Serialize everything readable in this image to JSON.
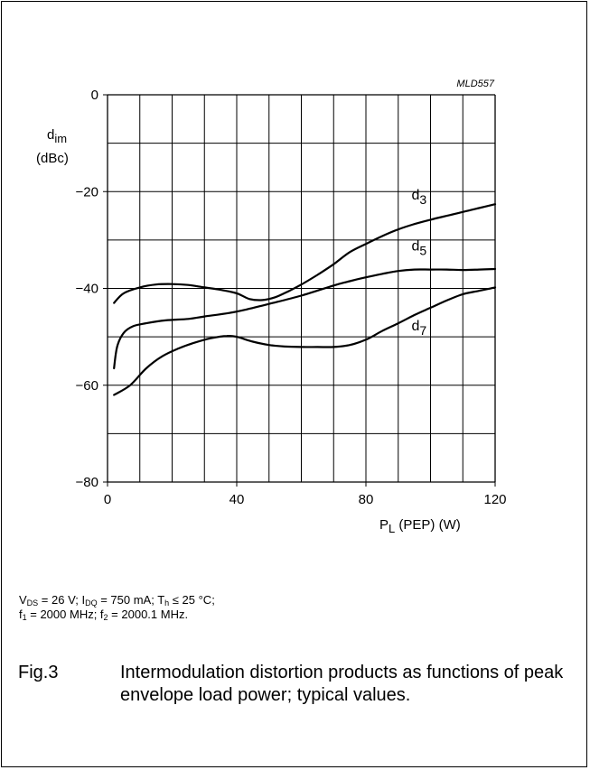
{
  "figure_code": "MLD557",
  "chart_data": {
    "type": "line",
    "ylabel_main": "d",
    "ylabel_sub": "im",
    "ylabel_unit": "(dBc)",
    "xlabel_main": "P",
    "xlabel_sub": "L",
    "xlabel_unit": "(PEP) (W)",
    "xlim": [
      0,
      120
    ],
    "ylim": [
      -80,
      0
    ],
    "x_ticks": [
      0,
      40,
      80,
      120
    ],
    "y_ticks": [
      0,
      -20,
      -40,
      -60,
      -80
    ],
    "x_tick_labels": [
      "0",
      "40",
      "80",
      "120"
    ],
    "y_tick_labels": [
      "0",
      "−20",
      "−40",
      "−60",
      "−80"
    ],
    "grid": true,
    "series": [
      {
        "name": "d",
        "name_sub": "3",
        "x": [
          2,
          5,
          10,
          15,
          20,
          25,
          30,
          35,
          40,
          44,
          48,
          52,
          56,
          60,
          65,
          70,
          75,
          80,
          85,
          90,
          95,
          100,
          105,
          110,
          115,
          120
        ],
        "y": [
          -43,
          -41,
          -39.8,
          -39.2,
          -39.1,
          -39.3,
          -39.8,
          -40.3,
          -41,
          -42.2,
          -42.4,
          -41.8,
          -40.6,
          -39.2,
          -37.2,
          -35,
          -32.5,
          -30.8,
          -29.2,
          -27.8,
          -26.7,
          -25.8,
          -25,
          -24.2,
          -23.4,
          -22.6
        ]
      },
      {
        "name": "d",
        "name_sub": "5",
        "x": [
          2,
          3,
          5,
          8,
          12,
          18,
          25,
          30,
          40,
          50,
          60,
          70,
          75,
          80,
          85,
          90,
          95,
          100,
          105,
          110,
          115,
          120
        ],
        "y": [
          -56.5,
          -52,
          -49.2,
          -47.8,
          -47.2,
          -46.6,
          -46.3,
          -45.8,
          -44.8,
          -43.2,
          -41.5,
          -39.4,
          -38.5,
          -37.7,
          -37,
          -36.4,
          -36.1,
          -36.1,
          -36.1,
          -36.2,
          -36.1,
          -36
        ]
      },
      {
        "name": "d",
        "name_sub": "7",
        "x": [
          2,
          7,
          12,
          17,
          22,
          27,
          32,
          37,
          40,
          45,
          50,
          55,
          60,
          65,
          70,
          75,
          80,
          85,
          90,
          95,
          100,
          105,
          110,
          115,
          120
        ],
        "y": [
          -62,
          -60,
          -56.5,
          -54,
          -52.4,
          -51.2,
          -50.3,
          -49.8,
          -50,
          -51,
          -51.7,
          -52,
          -52.1,
          -52.1,
          -52.1,
          -51.7,
          -50.6,
          -48.8,
          -47.2,
          -45.5,
          -44,
          -42.5,
          -41.2,
          -40.5,
          -39.8
        ]
      }
    ]
  },
  "conditions": {
    "line1": {
      "vds_label": "V",
      "vds_sub": "DS",
      "vds_rest": " = 26 V; I",
      "idq_sub": "DQ",
      "idq_rest": " = 750 mA; T",
      "th_sub": "h",
      "th_rest": " ≤ 25 °C;"
    },
    "line2": {
      "f1_label": "f",
      "f1_sub": "1",
      "f1_rest": " = 2000 MHz; f",
      "f2_sub": "2",
      "f2_rest": " = 2000.1 MHz."
    }
  },
  "caption": {
    "label": "Fig.3",
    "text": "Intermodulation distortion products as functions of peak envelope load power; typical values."
  }
}
